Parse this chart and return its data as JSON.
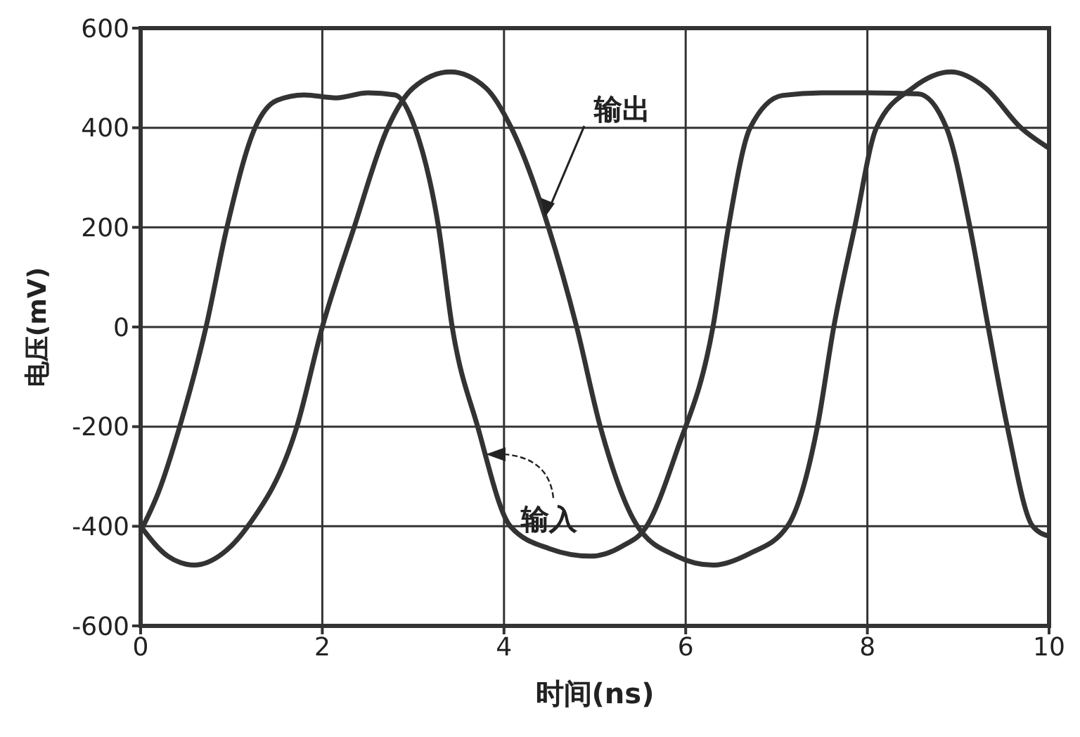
{
  "chart_data": {
    "type": "line",
    "xlabel": "时间(ns)",
    "ylabel": "电压(mV)",
    "xlim": [
      0,
      10
    ],
    "ylim": [
      -600,
      600
    ],
    "xticks": [
      0,
      2,
      4,
      6,
      8,
      10
    ],
    "yticks": [
      -600,
      -400,
      -200,
      0,
      200,
      400,
      600
    ],
    "grid": true,
    "legend": false,
    "marker": "none",
    "line_style": "solid",
    "series": [
      {
        "color": "#333333",
        "x": [
          0,
          0.2,
          0.43,
          0.72,
          0.95,
          1.26,
          1.5,
          1.8,
          2.15,
          2.5,
          2.8,
          3.02,
          3.28,
          3.43,
          3.71,
          4.07,
          4.5,
          4.95,
          5.3,
          5.57,
          5.9,
          6.3,
          6.47,
          6.71,
          7.07,
          7.5,
          8,
          8.56,
          8.87,
          9.13,
          9.33,
          9.54,
          9.82,
          10
        ],
        "values": [
          -410,
          -330,
          -200,
          0,
          200,
          400,
          455,
          466,
          460,
          470,
          466,
          400,
          200,
          0,
          -200,
          -400,
          -445,
          -460,
          -440,
          -400,
          -250,
          0,
          200,
          400,
          465,
          470,
          470,
          468,
          400,
          200,
          0,
          -200,
          -400,
          -420
        ]
      },
      {
        "color": "#333333",
        "x": [
          0,
          0.3,
          0.59,
          0.9,
          1.18,
          1.72,
          2.0,
          2.35,
          2.72,
          3.0,
          3.41,
          3.8,
          4.08,
          4.49,
          4.8,
          5.06,
          5.47,
          5.9,
          6.3,
          6.7,
          7.12,
          7.45,
          7.63,
          7.86,
          8.1,
          8.5,
          8.92,
          9.3,
          9.69,
          10
        ],
        "values": [
          -400,
          -460,
          -478,
          -455,
          -400,
          -200,
          0,
          200,
          400,
          480,
          512,
          480,
          400,
          200,
          0,
          -200,
          -400,
          -460,
          -478,
          -455,
          -400,
          -200,
          0,
          200,
          400,
          480,
          512,
          480,
          400,
          359
        ]
      }
    ],
    "annotations": [
      {
        "text": "输出",
        "x": 4.45,
        "y": 220
      },
      {
        "text": "输入",
        "x": 3.8,
        "y": -250
      }
    ]
  }
}
